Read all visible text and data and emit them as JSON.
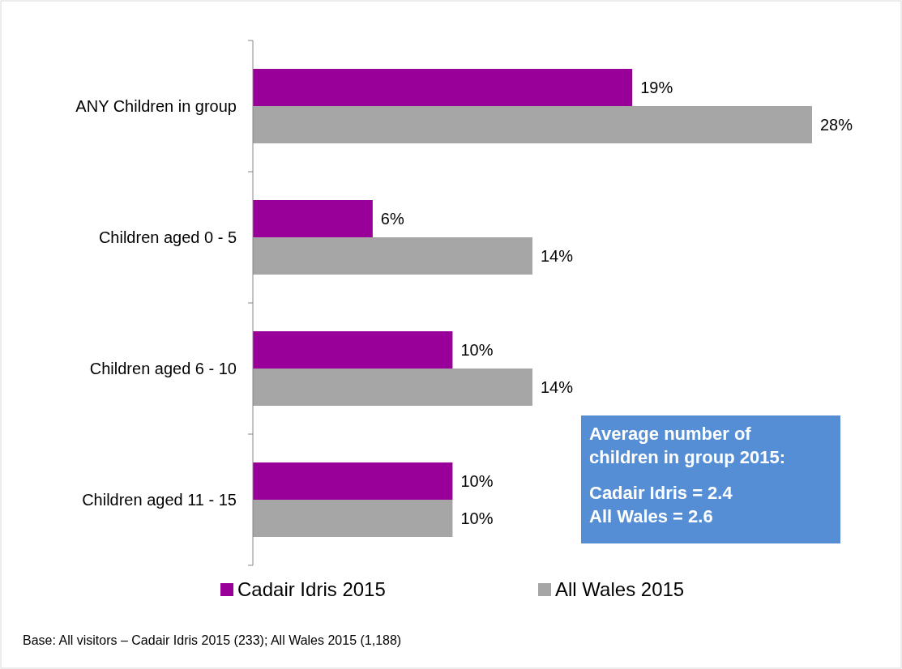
{
  "chart_data": {
    "type": "bar",
    "orientation": "horizontal",
    "categories": [
      "ANY Children in group",
      "Children aged 0 - 5",
      "Children aged 6 - 10",
      "Children aged 11 - 15"
    ],
    "series": [
      {
        "name": "Cadair Idris 2015",
        "color": "#990099",
        "values": [
          19,
          6,
          10,
          10
        ],
        "value_labels": [
          "19%",
          "6%",
          "10%",
          "10%"
        ]
      },
      {
        "name": "All Wales 2015",
        "color": "#a6a6a6",
        "values": [
          28,
          14,
          14,
          10
        ],
        "value_labels": [
          "28%",
          "14%",
          "14%",
          "10%"
        ]
      }
    ],
    "legend": "bottom",
    "annotations": [
      "Average number of children in group 2015:",
      "Cadair Idris = 2.4",
      "All Wales = 2.6",
      "Base: All visitors – Cadair Idris 2015 (233); All Wales 2015 (1,188)"
    ]
  }
}
